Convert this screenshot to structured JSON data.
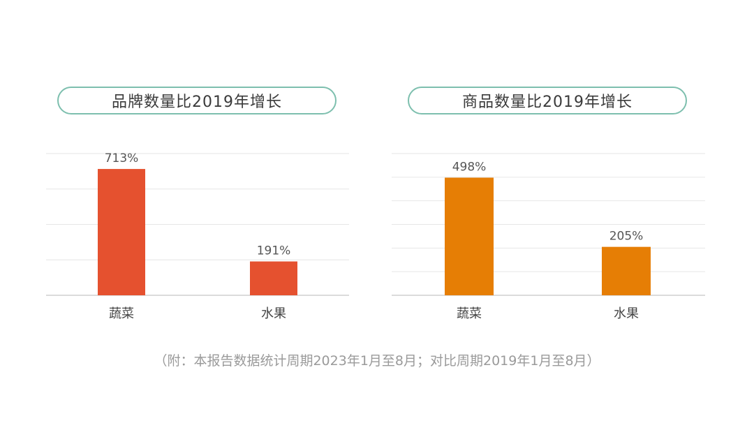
{
  "chart_data": [
    {
      "type": "bar",
      "title": "品牌数量比2019年增长",
      "categories": [
        "蔬菜",
        "水果"
      ],
      "values": [
        713,
        191
      ],
      "value_labels": [
        "713%",
        "191%"
      ],
      "unit": "%",
      "ylim": [
        0,
        800
      ],
      "grid": true,
      "bar_color": "#e5512f"
    },
    {
      "type": "bar",
      "title": "商品数量比2019年增长",
      "categories": [
        "蔬菜",
        "水果"
      ],
      "values": [
        498,
        205
      ],
      "value_labels": [
        "498%",
        "205%"
      ],
      "unit": "%",
      "ylim": [
        0,
        600
      ],
      "grid": true,
      "bar_color": "#e67e05"
    }
  ],
  "footnote": "（附：本报告数据统计周期2023年1月至8月；对比周期2019年1月至8月）",
  "colors": {
    "pill_border": "#7dbfae",
    "grid": "#e6e6e6",
    "footnote_text": "#9a9a9a"
  }
}
